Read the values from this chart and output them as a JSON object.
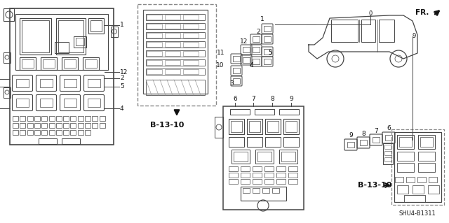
{
  "bg_color": "#ffffff",
  "line_color": "#444444",
  "dark_color": "#111111",
  "fig_width": 6.4,
  "fig_height": 3.19,
  "dpi": 100,
  "labels": {
    "b1310_1": "B-13-10",
    "b1310_2": "B-13-10",
    "shu4": "SHU4-B1311",
    "fr": "FR."
  }
}
